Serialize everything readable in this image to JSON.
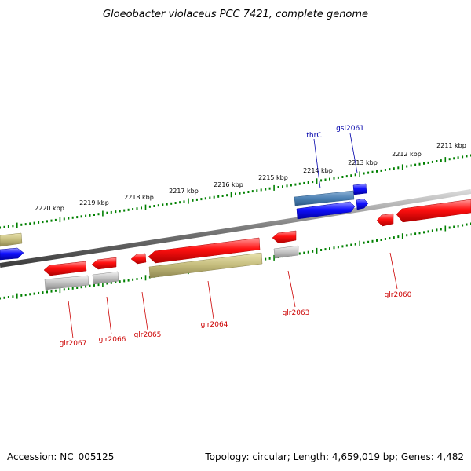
{
  "title": "Gloeobacter violaceus PCC 7421, complete genome",
  "footer": {
    "accession": "Accession: NC_005125",
    "topology": "Topology: circular; Length: 4,659,019 bp; Genes: 4,482"
  },
  "colors": {
    "forward_cds": "#0000ee",
    "reverse_cds": "#ee0000",
    "rna_feature": "#b8b070",
    "gray_feature": "#b0b0b0",
    "trna_feature": "#4a7fb0",
    "backbone": "#808080",
    "tick": "#008000",
    "forward_label": "#0000aa",
    "reverse_label": "#cc0000"
  },
  "scale_labels": [
    "2211 kbp",
    "2212 kbp",
    "2213 kbp",
    "2214 kbp",
    "2215 kbp",
    "2216 kbp",
    "2217 kbp",
    "2218 kbp",
    "2219 kbp",
    "2220 kbp"
  ],
  "gene_labels": {
    "thrC": "thrC",
    "gsl2061": "gsl2061",
    "glr2060": "glr2060",
    "glr2063": "glr2063",
    "glr2064": "glr2064",
    "glr2065": "glr2065",
    "glr2066": "glr2066",
    "glr2067": "glr2067"
  }
}
